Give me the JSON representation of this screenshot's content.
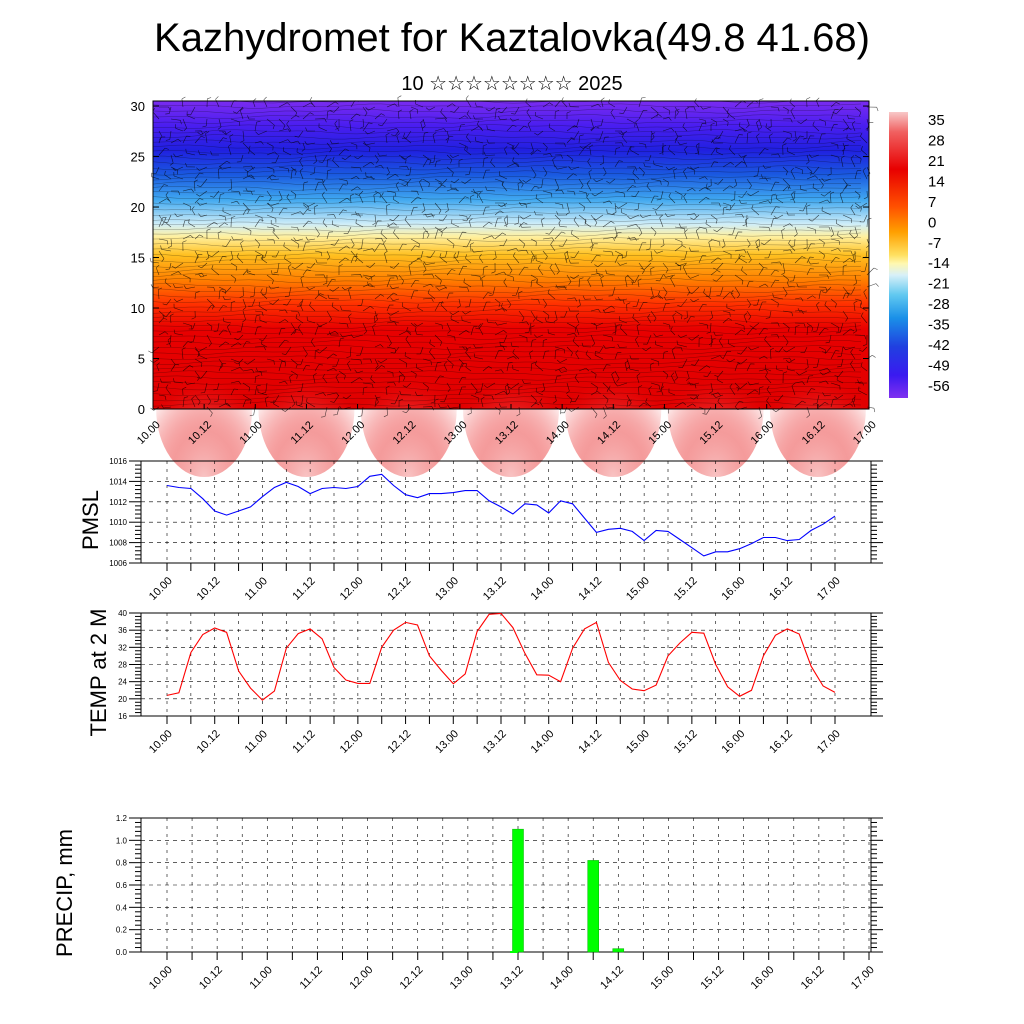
{
  "title": "Kazhydromet for Kaztalovka(49.8 41.68)",
  "subtitle": "10 ☆☆☆☆☆☆☆☆ 2025",
  "chart_data": [
    {
      "type": "heatmap",
      "name": "cross-section",
      "xlabels": [
        "10.00",
        "10.12",
        "11.00",
        "11.12",
        "12.00",
        "12.12",
        "13.00",
        "13.12",
        "14.00",
        "14.12",
        "15.00",
        "15.12",
        "16.00",
        "16.12",
        "17.00"
      ],
      "yticks": [
        "0",
        "5",
        "10",
        "15",
        "20",
        "25",
        "30"
      ],
      "ylim": [
        0,
        30.5
      ],
      "colorbar_labels": [
        "35",
        "28",
        "21",
        "14",
        "7",
        "0",
        "-7",
        "-14",
        "-21",
        "-28",
        "-35",
        "-42",
        "-49",
        "-56"
      ],
      "colorbar_range": [
        -63,
        42
      ],
      "overlays": [
        "temperature contours",
        "wind barbs"
      ]
    },
    {
      "type": "line",
      "ylabel": "PMSL",
      "ylim": [
        1006,
        1016
      ],
      "yticks": [
        "1006",
        "1008",
        "1010",
        "1012",
        "1014",
        "1016"
      ],
      "xlabels": [
        "10.00",
        "10.12",
        "11.00",
        "11.12",
        "12.00",
        "12.12",
        "13.00",
        "13.12",
        "14.00",
        "14.12",
        "15.00",
        "15.12",
        "16.00",
        "16.12",
        "17.00"
      ],
      "color": "#0000ff",
      "values": [
        1013.6,
        1013.4,
        1013.3,
        1012.3,
        1011.1,
        1010.7,
        1011.1,
        1011.5,
        1012.5,
        1013.4,
        1013.9,
        1013.5,
        1012.8,
        1013.3,
        1013.4,
        1013.3,
        1013.5,
        1014.5,
        1014.7,
        1013.6,
        1012.7,
        1012.4,
        1012.8,
        1012.8,
        1012.9,
        1013.1,
        1013.1,
        1012.1,
        1011.5,
        1010.8,
        1011.8,
        1011.7,
        1010.9,
        1012.1,
        1011.8,
        1010.4,
        1009.0,
        1009.3,
        1009.4,
        1009.1,
        1008.2,
        1009.2,
        1009.1,
        1008.3,
        1007.5,
        1006.7,
        1007.1,
        1007.1,
        1007.4,
        1007.9,
        1008.5,
        1008.5,
        1008.2,
        1008.3,
        1009.2,
        1009.8,
        1010.6
      ]
    },
    {
      "type": "line",
      "ylabel": "TEMP at 2 M",
      "ylim": [
        16,
        40
      ],
      "yticks": [
        "16",
        "20",
        "24",
        "28",
        "32",
        "36",
        "40"
      ],
      "xlabels": [
        "10.00",
        "10.12",
        "11.00",
        "11.12",
        "12.00",
        "12.12",
        "13.00",
        "13.12",
        "14.00",
        "14.12",
        "15.00",
        "15.12",
        "16.00",
        "16.12",
        "17.00"
      ],
      "color": "#ff0000",
      "values": [
        20.8,
        21.4,
        30.8,
        35.0,
        36.5,
        35.5,
        26.5,
        22.5,
        19.7,
        21.8,
        31.8,
        35.2,
        36.3,
        34.0,
        27.3,
        24.4,
        23.6,
        23.6,
        32.0,
        36.0,
        37.8,
        37.2,
        30.0,
        26.6,
        23.5,
        25.8,
        35.7,
        39.7,
        39.9,
        36.6,
        30.6,
        25.6,
        25.5,
        24.0,
        31.8,
        36.3,
        37.8,
        28.5,
        24.3,
        22.3,
        21.9,
        23.2,
        30.0,
        33.0,
        35.5,
        35.3,
        28.0,
        22.8,
        20.6,
        22.0,
        30.0,
        34.8,
        36.3,
        35.1,
        27.6,
        23.0,
        21.5
      ]
    },
    {
      "type": "bar",
      "ylabel": "PRECIP, mm",
      "ylim": [
        0,
        1.2
      ],
      "yticks": [
        "0.0",
        "0.2",
        "0.4",
        "0.6",
        "0.8",
        "1.0",
        "1.2"
      ],
      "xlabels": [
        "10.00",
        "10.12",
        "11.00",
        "11.12",
        "12.00",
        "12.12",
        "13.00",
        "13.12",
        "14.00",
        "14.12",
        "15.00",
        "15.12",
        "16.00",
        "16.12",
        "17.00"
      ],
      "color": "#00ff00",
      "bars": [
        {
          "x": 13.5,
          "value": 1.1
        },
        {
          "x": 14.25,
          "value": 0.82
        },
        {
          "x": 14.5,
          "value": 0.03
        }
      ]
    }
  ]
}
